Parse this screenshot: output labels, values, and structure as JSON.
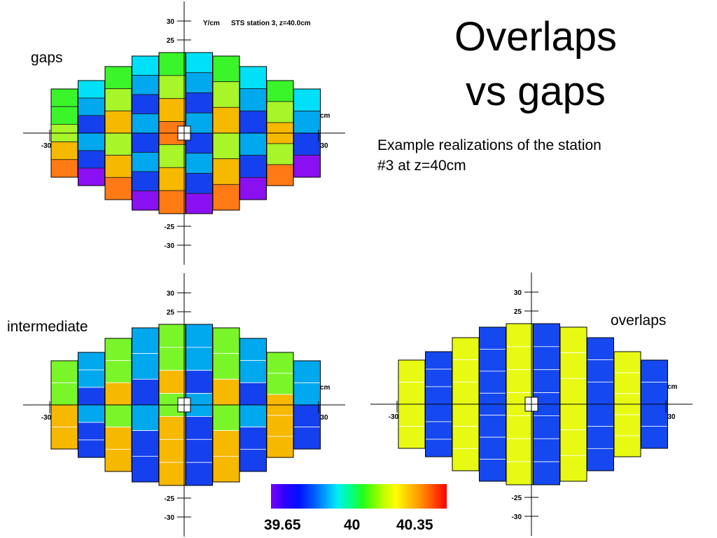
{
  "slide": {
    "title_line1": "Overlaps",
    "title_line2": "vs gaps",
    "description": "Example realizations of the station #3 at z=40cm"
  },
  "panels": {
    "gaps": {
      "label": "gaps",
      "histogram_title": "STS station 3, z=40.0cm",
      "y_axis_label": "Y/cm",
      "x_axis_label": "cm",
      "y_ticks": [
        "30",
        "25",
        "-25",
        "-30"
      ],
      "x_ticks": [
        "-30",
        "30"
      ],
      "ladder_colors": [
        [
          "#3af52a",
          "#3af52a",
          "#a8f52a",
          "#f7b800",
          "#ff7a14"
        ],
        [
          "#00e0f8",
          "#00a8ee",
          "#1540ee",
          "#00a8ee",
          "#1540ee",
          "#8a10f2"
        ],
        [
          "#3af52a",
          "#a8f52a",
          "#f7b800",
          "#a8f52a",
          "#f7b800",
          "#ff7a14"
        ],
        [
          "#00e0f8",
          "#00a8ee",
          "#1540ee",
          "#00a8ee",
          "#1540ee",
          "#00a8ee",
          "#1540ee",
          "#8a10f2"
        ],
        [
          "#3af52a",
          "#a8f52a",
          "#f7b800",
          "#ff7a14",
          "#a8f52a",
          "#f7b800",
          "#ff7a14"
        ],
        [
          "#00e0f8",
          "#00a8ee",
          "#1540ee",
          "#00a8ee",
          "#1540ee",
          "#00a8ee",
          "#1540ee",
          "#8a10f2"
        ],
        [
          "#3af52a",
          "#a8f52a",
          "#f7b800",
          "#a8f52a",
          "#f7b800",
          "#ff7a14"
        ],
        [
          "#00e0f8",
          "#00a8ee",
          "#1540ee",
          "#00a8ee",
          "#1540ee",
          "#8a10f2"
        ],
        [
          "#3af52a",
          "#a8f52a",
          "#f7b800",
          "#a8f52a",
          "#ff7a14"
        ],
        [
          "#00e0f8",
          "#00a8ee",
          "#1540ee",
          "#8a10f2"
        ]
      ]
    },
    "intermediate": {
      "label": "intermediate",
      "x_axis_label": "cm",
      "y_ticks": [
        "30",
        "25",
        "-25",
        "-30"
      ],
      "x_ticks": [
        "-30",
        "30"
      ],
      "ladder_colors": [
        [
          "#7af52a",
          "#7af52a",
          "#f7b800",
          "#f7b800"
        ],
        [
          "#00a8ee",
          "#00a8ee",
          "#1540ee",
          "#00a8ee",
          "#1540ee",
          "#1540ee"
        ],
        [
          "#7af52a",
          "#7af52a",
          "#f7b800",
          "#7af52a",
          "#f7b800",
          "#f7b800"
        ],
        [
          "#00a8ee",
          "#00a8ee",
          "#1540ee",
          "#00a8ee",
          "#1540ee",
          "#1540ee"
        ],
        [
          "#7af52a",
          "#7af52a",
          "#f7b800",
          "#7af52a",
          "#f7b800",
          "#f7b800",
          "#f7b800"
        ],
        [
          "#00a8ee",
          "#00a8ee",
          "#1540ee",
          "#00a8ee",
          "#1540ee",
          "#1540ee",
          "#1540ee"
        ],
        [
          "#7af52a",
          "#7af52a",
          "#f7b800",
          "#7af52a",
          "#f7b800",
          "#f7b800"
        ],
        [
          "#00a8ee",
          "#00a8ee",
          "#1540ee",
          "#00a8ee",
          "#1540ee",
          "#1540ee"
        ],
        [
          "#7af52a",
          "#7af52a",
          "#f7b800",
          "#f7b800",
          "#f7b800"
        ],
        [
          "#00a8ee",
          "#00a8ee",
          "#1540ee",
          "#1540ee"
        ]
      ]
    },
    "overlaps": {
      "label": "overlaps",
      "x_axis_label": "cm",
      "y_ticks": [
        "30",
        "25",
        "-25",
        "-30"
      ],
      "x_ticks": [
        "-30",
        "30"
      ],
      "ladder_colors": [
        [
          "#e8fa14",
          "#e8fa14",
          "#e8fa14",
          "#e8fa14"
        ],
        [
          "#1548ee",
          "#1548ee",
          "#1548ee",
          "#1548ee",
          "#1548ee",
          "#1548ee"
        ],
        [
          "#e8fa14",
          "#e8fa14",
          "#e8fa14",
          "#e8fa14",
          "#e8fa14",
          "#e8fa14"
        ],
        [
          "#1548ee",
          "#1548ee",
          "#1548ee",
          "#1548ee",
          "#1548ee",
          "#1548ee",
          "#1548ee"
        ],
        [
          "#e8fa14",
          "#e8fa14",
          "#e8fa14",
          "#e8fa14",
          "#e8fa14",
          "#e8fa14",
          "#e8fa14"
        ],
        [
          "#1548ee",
          "#1548ee",
          "#1548ee",
          "#1548ee",
          "#1548ee",
          "#1548ee",
          "#1548ee"
        ],
        [
          "#e8fa14",
          "#e8fa14",
          "#e8fa14",
          "#e8fa14",
          "#e8fa14",
          "#e8fa14"
        ],
        [
          "#1548ee",
          "#1548ee",
          "#1548ee",
          "#1548ee",
          "#1548ee",
          "#1548ee"
        ],
        [
          "#e8fa14",
          "#e8fa14",
          "#e8fa14",
          "#e8fa14",
          "#e8fa14"
        ],
        [
          "#1548ee",
          "#1548ee",
          "#1548ee",
          "#1548ee"
        ]
      ]
    }
  },
  "color_scale": {
    "min_label": "39.65",
    "mid_label": "40",
    "max_label": "40.35"
  }
}
